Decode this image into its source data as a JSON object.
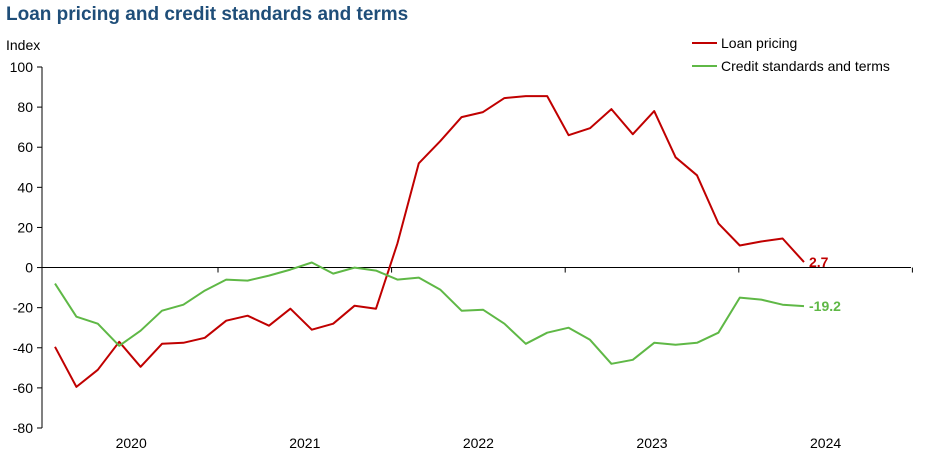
{
  "chart_data": {
    "type": "line",
    "title": "Loan pricing and credit standards and terms",
    "ylabel": "Index",
    "xlabel": "",
    "ylim": [
      -80,
      100
    ],
    "yticks": [
      "100",
      "80",
      "60",
      "40",
      "20",
      "0",
      "-20",
      "-40",
      "-60",
      "-80"
    ],
    "year_labels": [
      "2020",
      "2021",
      "2022",
      "2023",
      "2024"
    ],
    "legend_placement": "top-right",
    "grid": false,
    "series": [
      {
        "name": "Loan pricing",
        "color": "#c00000",
        "end_label": "2.7",
        "values": [
          -39.5,
          -59.5,
          -51,
          -37,
          -49.5,
          -38,
          -37.5,
          -35,
          -26.5,
          -24,
          -29,
          -20.5,
          -31,
          -28,
          -19,
          -20.5,
          12,
          52,
          63,
          75,
          77.5,
          84.5,
          85.5,
          85.5,
          66,
          69.5,
          79,
          66.5,
          78,
          55,
          46,
          22,
          11,
          13,
          14.5,
          2.7
        ]
      },
      {
        "name": "Credit standards and terms",
        "color": "#5fb846",
        "end_label": "-19.2",
        "values": [
          -8,
          -24.5,
          -28,
          -39,
          -31.5,
          -21.5,
          -18.5,
          -11.5,
          -6,
          -6.5,
          -4,
          -1,
          2.5,
          -3,
          0,
          -1.5,
          -6,
          -5,
          -11,
          -21.5,
          -21,
          -28,
          -38,
          -32.5,
          -30,
          -36,
          -48,
          -46,
          -37.5,
          -38.5,
          -37.5,
          -32.5,
          -15,
          -16,
          -18.5,
          -19.2
        ]
      }
    ]
  }
}
